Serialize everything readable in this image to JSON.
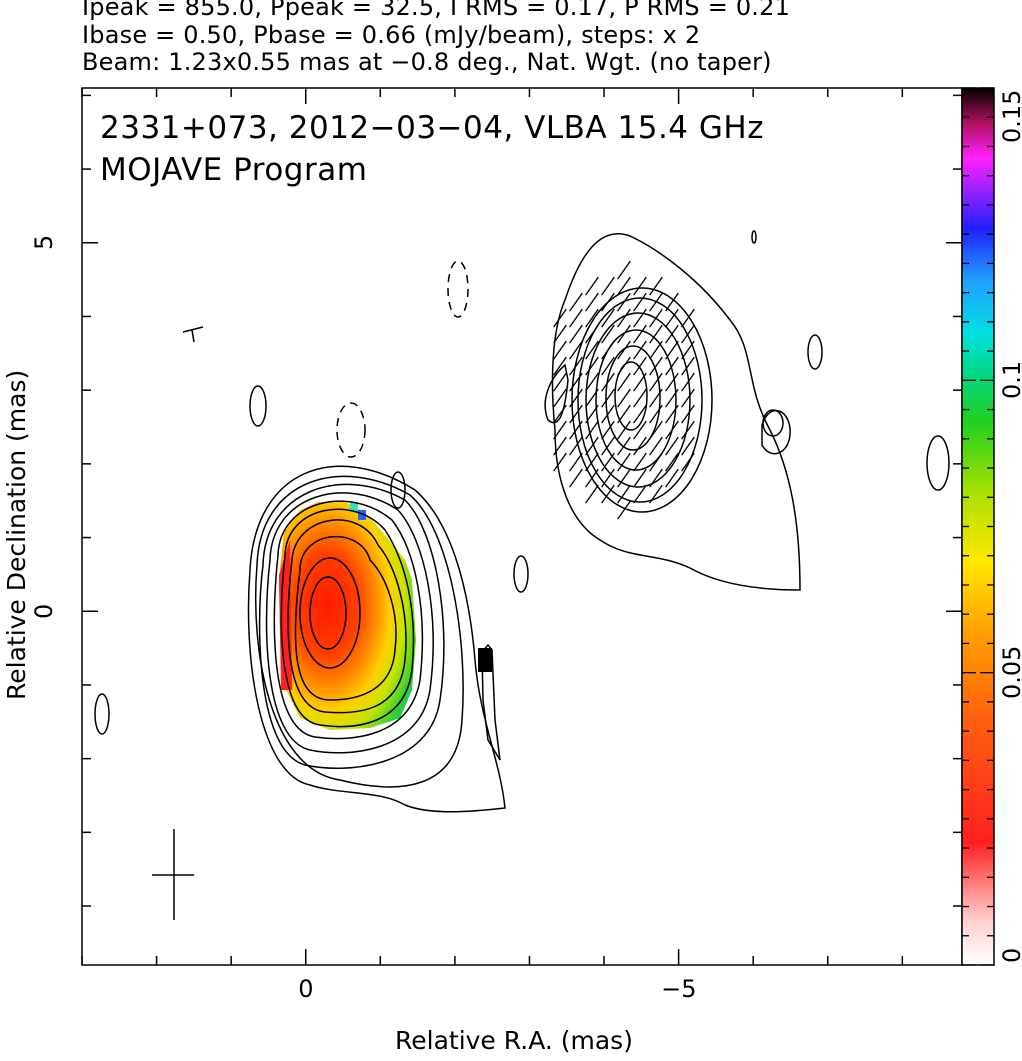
{
  "header": {
    "line1": "Ipeak = 855.0, Ppeak = 32.5, I RMS = 0.17, P RMS = 0.21",
    "line2": "Ibase = 0.50, Pbase = 0.66 (mJy/beam), steps: x 2",
    "line3": "Beam: 1.23x0.55 mas at −0.8 deg., Nat. Wgt. (no taper)"
  },
  "plot": {
    "title_line1": "2331+073, 2012−03−04, VLBA 15.4 GHz",
    "title_line2": "MOJAVE Program"
  },
  "chart_data": {
    "type": "heatmap",
    "xlabel": "Relative R.A. (mas)",
    "ylabel": "Relative Declination (mas)",
    "xlim": [
      3.0,
      -8.8
    ],
    "ylim": [
      -4.8,
      7.1
    ],
    "x_ticks": [
      {
        "value": 0,
        "label": "0"
      },
      {
        "value": -5,
        "label": "−5"
      }
    ],
    "y_ticks": [
      {
        "value": 0,
        "label": "0"
      },
      {
        "value": 5,
        "label": "5"
      }
    ],
    "colorbar": {
      "range": [
        0,
        0.15
      ],
      "ticks": [
        {
          "value": 0,
          "label": "0"
        },
        {
          "value": 0.05,
          "label": "0.05"
        },
        {
          "value": 0.1,
          "label": "0.1"
        },
        {
          "value": 0.15,
          "label": "0.15"
        }
      ]
    },
    "core_peak": {
      "x": -0.1,
      "y": 0.1
    },
    "jet_component": {
      "x": -4.2,
      "y": 3.0
    },
    "beam": {
      "major_mas": 1.23,
      "minor_mas": 0.55,
      "pa_deg": -0.8
    }
  }
}
